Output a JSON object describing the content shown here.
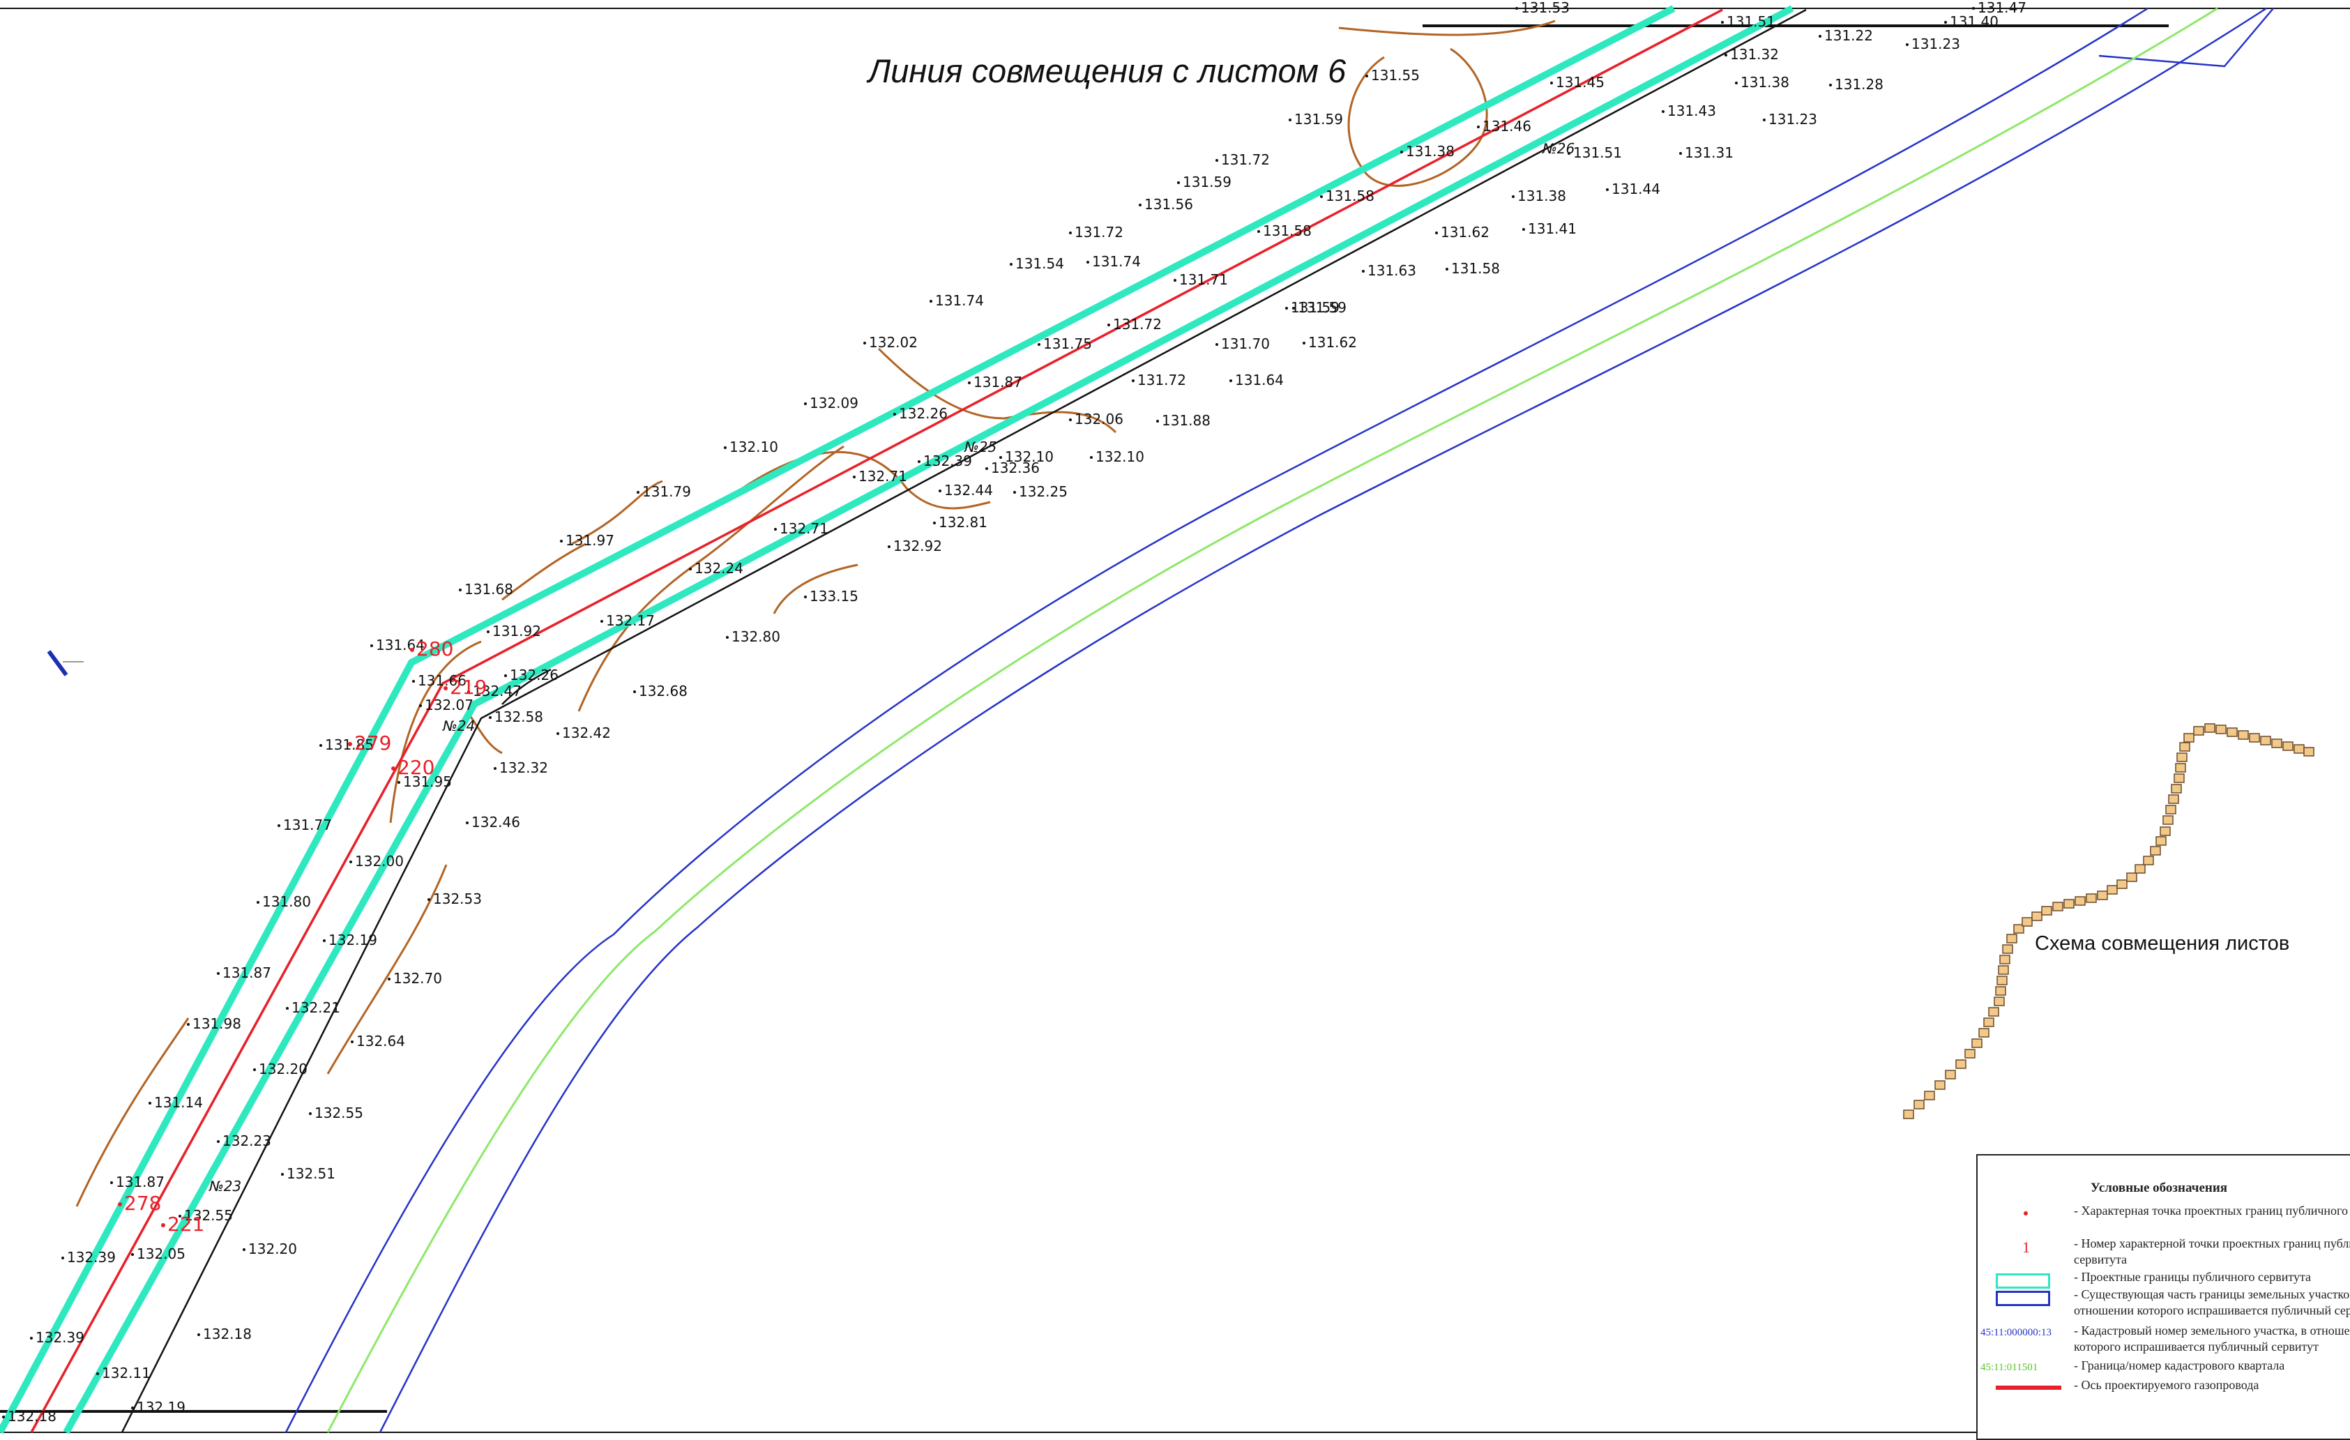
{
  "map": {
    "sheet_link_label": "Линия совмещения с листом 6",
    "scheme_label": "Схема совмещения листов",
    "colors": {
      "servitude_boundary": "#2ee8c0",
      "pipeline_axis": "#e8202a",
      "land_plot_boundary": "#2433c8",
      "cadastral_quarter": "#8fe86a",
      "contour": "#b26424",
      "road_edge": "#111111",
      "point_number": "#e8202a"
    },
    "point_numbers": [
      "280",
      "279",
      "278",
      "219",
      "220",
      "221"
    ],
    "stations": [
      "№23",
      "№24",
      "№25",
      "№26"
    ],
    "elevations": [
      "131.53",
      "131.55",
      "131.51",
      "131.22",
      "131.23",
      "131.40",
      "131.47",
      "131.45",
      "131.32",
      "131.38",
      "131.28",
      "131.43",
      "131.23",
      "131.59",
      "131.46",
      "131.38",
      "131.51",
      "131.31",
      "131.72",
      "131.59",
      "131.58",
      "131.38",
      "131.44",
      "131.56",
      "131.58",
      "131.62",
      "131.41",
      "131.72",
      "131.74",
      "131.54",
      "131.63",
      "131.58",
      "131.71",
      "131.74",
      "131.59",
      "131.72",
      "131.59",
      "132.02",
      "131.75",
      "131.70",
      "131.62",
      "131.87",
      "131.72",
      "131.64",
      "132.09",
      "132.26",
      "132.06",
      "131.88",
      "132.10",
      "132.39",
      "132.10",
      "132.36",
      "132.10",
      "131.79",
      "132.71",
      "132.44",
      "132.25",
      "132.71",
      "132.81",
      "131.97",
      "132.92",
      "132.24",
      "133.15",
      "131.68",
      "131.92",
      "132.17",
      "132.80",
      "131.64",
      "132.26",
      "131.66",
      "132.47",
      "132.07",
      "132.58",
      "132.68",
      "132.42",
      "131.85",
      "131.95",
      "132.32",
      "131.77",
      "132.46",
      "132.00",
      "131.80",
      "132.53",
      "132.19",
      "131.87",
      "132.70",
      "132.21",
      "131.98",
      "132.64",
      "132.20",
      "131.14",
      "132.55",
      "132.23",
      "132.51",
      "131.87",
      "132.55",
      "132.20",
      "132.39",
      "132.05",
      "132.18",
      "132.39",
      "132.11",
      "132.19",
      "132.18",
      "132.17"
    ]
  },
  "legend": {
    "title": "Условные обозначения",
    "items": [
      {
        "symbol": "dot",
        "text": "- Характерная точка проектных границ публичного сервитута"
      },
      {
        "symbol": "number",
        "code": "1",
        "text": "- Номер характерной точки проектных границ публичного сервитута"
      },
      {
        "symbol": "cyan-rect",
        "text": "- Проектные границы публичного сервитута"
      },
      {
        "symbol": "blue-rect",
        "text": "- Существующая часть границы земельных участков, в отношении которого испрашивается публичный сервитут"
      },
      {
        "symbol": "code-blue",
        "code": "45:11:000000:13",
        "text": "- Кадастровый номер земельного участка, в отношении которого испрашивается публичный сервитут"
      },
      {
        "symbol": "code-green",
        "code": "45:11:011501",
        "text": "- Граница/номер кадастрового квартала"
      },
      {
        "symbol": "red-line",
        "text": "- Ось проектируемого газопровода"
      }
    ]
  }
}
